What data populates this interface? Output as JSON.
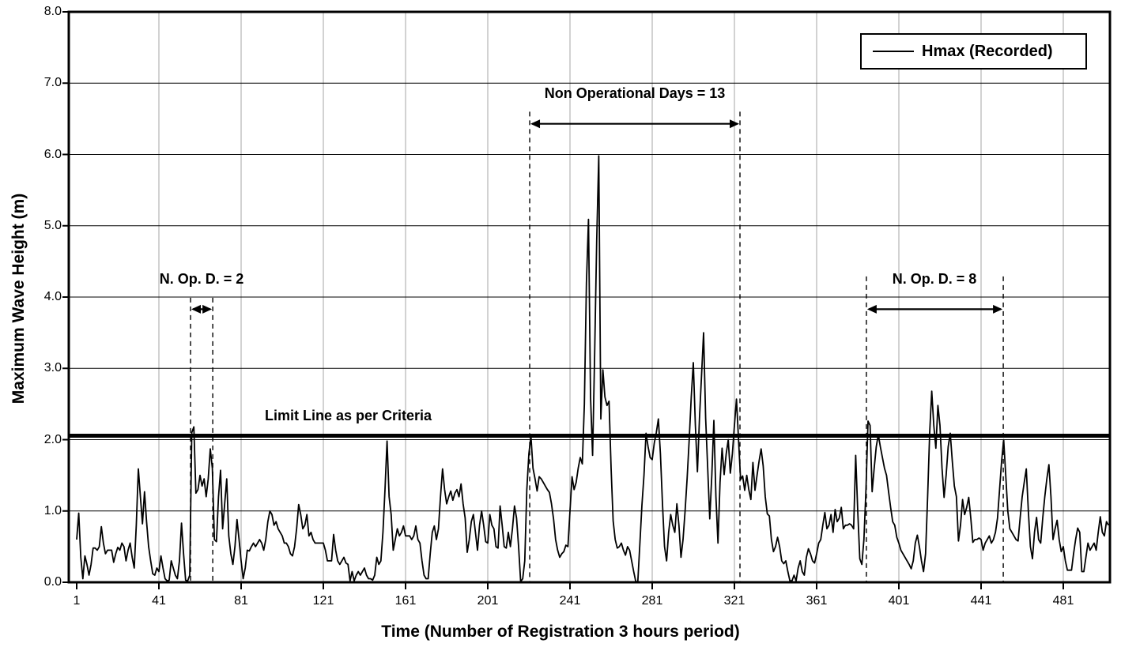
{
  "chart_data": {
    "type": "line",
    "xlabel": "Time (Number of Registration 3 hours period)",
    "ylabel": "Maximum Wave Height (m)",
    "x_ticks": [
      1,
      41,
      81,
      121,
      161,
      201,
      241,
      281,
      321,
      361,
      401,
      441,
      481
    ],
    "y_tick_labels": [
      "0.0",
      "1.0",
      "2.0",
      "3.0",
      "4.0",
      "5.0",
      "6.0",
      "7.0",
      "8.0"
    ],
    "ylim": [
      0,
      8
    ],
    "xlim": [
      1,
      503
    ],
    "grid": {
      "horizontal": true,
      "vertical": true
    },
    "legend_position": "top-right",
    "limit_line": {
      "label": "Limit Line as per Criteria",
      "value": 2.0
    },
    "annotations": [
      {
        "label": "Non Operational Days = 13",
        "x_from": 221.4,
        "x_to": 323.7,
        "arrow_y": 6.43,
        "line_top": 6.6
      },
      {
        "label": "N. Op. D. = 2",
        "x_from": 56.4,
        "x_to": 67.2,
        "arrow_y": 3.83,
        "line_top": 3.99
      },
      {
        "label": "N. Op. D. = 8",
        "x_from": 385.2,
        "x_to": 451.8,
        "arrow_y": 3.83,
        "line_top": 4.29
      }
    ],
    "series": [
      {
        "name": "Hmax (Recorded)",
        "x_start": 1,
        "x_step": 1,
        "values": [
          0.6,
          0.97,
          0.35,
          0.05,
          0.37,
          0.25,
          0.1,
          0.25,
          0.48,
          0.48,
          0.45,
          0.5,
          0.78,
          0.55,
          0.4,
          0.45,
          0.45,
          0.45,
          0.28,
          0.4,
          0.49,
          0.45,
          0.55,
          0.5,
          0.3,
          0.45,
          0.55,
          0.35,
          0.2,
          0.8,
          1.59,
          1.2,
          0.82,
          1.27,
          0.85,
          0.5,
          0.3,
          0.12,
          0.1,
          0.2,
          0.15,
          0.37,
          0.2,
          0.05,
          0.02,
          0.03,
          0.3,
          0.2,
          0.1,
          0.05,
          0.3,
          0.83,
          0.4,
          0.03,
          0.02,
          0.1,
          2.1,
          2.18,
          1.25,
          1.3,
          1.5,
          1.35,
          1.45,
          1.2,
          1.45,
          1.87,
          1.6,
          0.6,
          0.57,
          1.2,
          1.57,
          0.75,
          1.1,
          1.45,
          0.65,
          0.4,
          0.25,
          0.5,
          0.88,
          0.6,
          0.3,
          0.05,
          0.2,
          0.45,
          0.44,
          0.5,
          0.55,
          0.5,
          0.55,
          0.6,
          0.55,
          0.45,
          0.6,
          0.85,
          1.0,
          0.95,
          0.8,
          0.85,
          0.75,
          0.7,
          0.65,
          0.55,
          0.55,
          0.5,
          0.4,
          0.37,
          0.5,
          0.75,
          1.09,
          0.95,
          0.75,
          0.8,
          0.95,
          0.65,
          0.7,
          0.6,
          0.55,
          0.55,
          0.55,
          0.55,
          0.55,
          0.45,
          0.3,
          0.3,
          0.3,
          0.67,
          0.45,
          0.3,
          0.25,
          0.3,
          0.35,
          0.27,
          0.25,
          0.02,
          0.15,
          0.02,
          0.1,
          0.15,
          0.1,
          0.15,
          0.2,
          0.1,
          0.05,
          0.05,
          0.03,
          0.1,
          0.35,
          0.25,
          0.3,
          0.7,
          1.3,
          1.98,
          1.2,
          0.95,
          0.45,
          0.6,
          0.75,
          0.65,
          0.7,
          0.79,
          0.65,
          0.65,
          0.65,
          0.6,
          0.65,
          0.79,
          0.6,
          0.55,
          0.3,
          0.1,
          0.05,
          0.05,
          0.4,
          0.7,
          0.79,
          0.6,
          0.75,
          1.2,
          1.59,
          1.3,
          1.1,
          1.2,
          1.28,
          1.15,
          1.25,
          1.3,
          1.2,
          1.38,
          1.1,
          0.9,
          0.42,
          0.6,
          0.85,
          0.95,
          0.7,
          0.45,
          0.8,
          1.0,
          0.8,
          0.57,
          0.55,
          0.95,
          0.8,
          0.75,
          0.5,
          0.48,
          1.07,
          0.8,
          0.5,
          0.48,
          0.7,
          0.5,
          0.75,
          1.07,
          0.9,
          0.5,
          0.01,
          0.05,
          0.3,
          1.3,
          1.8,
          2.05,
          1.6,
          1.45,
          1.28,
          1.48,
          1.45,
          1.4,
          1.35,
          1.3,
          1.26,
          1.1,
          0.89,
          0.6,
          0.45,
          0.35,
          0.4,
          0.43,
          0.52,
          0.5,
          1.0,
          1.48,
          1.3,
          1.4,
          1.6,
          1.75,
          1.66,
          2.5,
          4.2,
          5.09,
          2.6,
          1.78,
          3.2,
          4.8,
          5.98,
          2.29,
          2.98,
          2.6,
          2.48,
          2.54,
          1.6,
          0.86,
          0.6,
          0.48,
          0.5,
          0.55,
          0.45,
          0.38,
          0.5,
          0.45,
          0.3,
          0.15,
          0.01,
          0.01,
          0.54,
          1.08,
          1.5,
          2.09,
          1.9,
          1.75,
          1.72,
          1.95,
          2.1,
          2.29,
          1.8,
          1.1,
          0.5,
          0.3,
          0.7,
          0.95,
          0.8,
          0.7,
          1.1,
          0.8,
          0.35,
          0.6,
          1.0,
          1.46,
          2.0,
          2.6,
          3.08,
          2.2,
          1.55,
          2.3,
          2.9,
          3.5,
          2.3,
          1.6,
          0.89,
          1.5,
          2.27,
          1.2,
          0.55,
          1.4,
          1.88,
          1.51,
          1.8,
          2.0,
          1.53,
          1.8,
          2.2,
          2.57,
          2.0,
          1.44,
          1.49,
          1.29,
          1.5,
          1.3,
          1.16,
          1.68,
          1.29,
          1.5,
          1.7,
          1.87,
          1.63,
          1.2,
          0.96,
          0.93,
          0.6,
          0.43,
          0.5,
          0.63,
          0.5,
          0.3,
          0.26,
          0.3,
          0.15,
          0.02,
          0.02,
          0.1,
          0.02,
          0.2,
          0.3,
          0.15,
          0.1,
          0.35,
          0.47,
          0.4,
          0.3,
          0.27,
          0.4,
          0.55,
          0.6,
          0.8,
          0.98,
          0.75,
          0.8,
          0.95,
          0.7,
          1.02,
          0.85,
          0.9,
          1.05,
          0.75,
          0.8,
          0.8,
          0.82,
          0.8,
          0.75,
          1.78,
          1.0,
          0.33,
          0.25,
          0.6,
          1.3,
          2.26,
          2.2,
          1.27,
          1.6,
          1.9,
          2.07,
          1.9,
          1.75,
          1.6,
          1.5,
          1.27,
          1.05,
          0.85,
          0.8,
          0.63,
          0.55,
          0.45,
          0.4,
          0.35,
          0.3,
          0.25,
          0.19,
          0.3,
          0.55,
          0.66,
          0.5,
          0.3,
          0.15,
          0.4,
          1.2,
          2.1,
          2.68,
          2.2,
          1.88,
          2.48,
          2.2,
          1.6,
          1.19,
          1.5,
          1.9,
          2.09,
          1.7,
          1.35,
          1.2,
          0.58,
          0.8,
          1.16,
          0.95,
          1.05,
          1.19,
          0.9,
          0.56,
          0.6,
          0.6,
          0.62,
          0.6,
          0.45,
          0.55,
          0.6,
          0.65,
          0.55,
          0.6,
          0.7,
          0.9,
          1.3,
          1.7,
          2.0,
          1.5,
          1.0,
          0.75,
          0.7,
          0.65,
          0.6,
          0.58,
          0.9,
          1.2,
          1.4,
          1.59,
          1.0,
          0.5,
          0.33,
          0.7,
          0.91,
          0.6,
          0.55,
          0.9,
          1.2,
          1.45,
          1.65,
          1.2,
          0.6,
          0.75,
          0.87,
          0.6,
          0.43,
          0.5,
          0.3,
          0.17,
          0.17,
          0.17,
          0.4,
          0.6,
          0.76,
          0.7,
          0.15,
          0.15,
          0.35,
          0.55,
          0.45,
          0.5,
          0.55,
          0.45,
          0.7,
          0.92,
          0.7,
          0.65,
          0.85,
          0.8
        ]
      }
    ],
    "colors": {
      "line": "#000000",
      "limit_line": "#000000",
      "grid_h": "#000000",
      "grid_v": "#a6a6a6",
      "background": "#ffffff"
    }
  }
}
